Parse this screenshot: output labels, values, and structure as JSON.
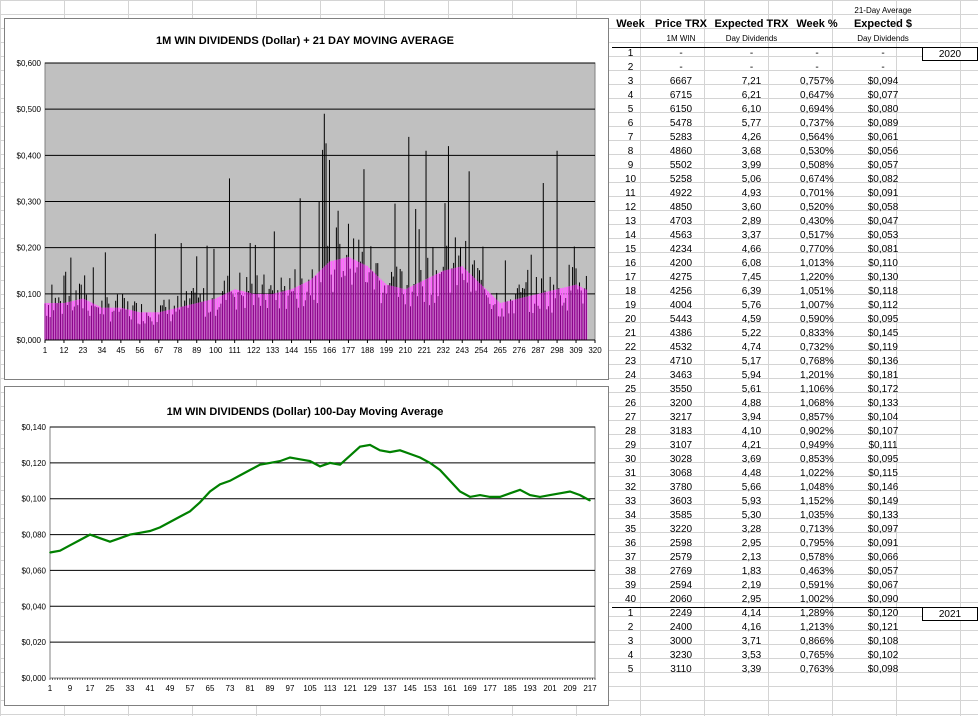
{
  "chart_data": [
    {
      "type": "bar",
      "title": "1M WIN DIVIDENDS (Dollar) + 21 DAY MOVING AVERAGE",
      "ylim": [
        0,
        0.6
      ],
      "yticks": [
        "$0,000",
        "$0,100",
        "$0,200",
        "$0,300",
        "$0,400",
        "$0,500",
        "$0,600"
      ],
      "xticks": [
        "1",
        "12",
        "23",
        "34",
        "45",
        "56",
        "67",
        "78",
        "89",
        "100",
        "111",
        "122",
        "133",
        "144",
        "155",
        "166",
        "177",
        "188",
        "199",
        "210",
        "221",
        "232",
        "243",
        "254",
        "265",
        "276",
        "287",
        "298",
        "309",
        "320"
      ],
      "xlim": [
        1,
        320
      ],
      "grid": true,
      "background": "#c0c0c0",
      "series_colors": {
        "daily": "#000000",
        "average_21": "#ff66ff",
        "overlap": "#800080"
      },
      "series": [
        {
          "values_daily_peaks": [
            [
              5,
              0.12
            ],
            [
              24,
              0.14
            ],
            [
              36,
              0.16
            ],
            [
              65,
              0.23
            ],
            [
              80,
              0.21
            ],
            [
              108,
              0.35
            ],
            [
              120,
              0.21
            ],
            [
              160,
              0.3
            ],
            [
              163,
              0.49
            ],
            [
              166,
              0.39
            ],
            [
              171,
              0.28
            ],
            [
              180,
              0.22
            ],
            [
              186,
              0.37
            ],
            [
              212,
              0.44
            ],
            [
              218,
              0.24
            ],
            [
              222,
              0.41
            ],
            [
              235,
              0.42
            ],
            [
              290,
              0.34
            ],
            [
              298,
              0.41
            ]
          ]
        },
        {
          "values_average": [
            0.08,
            0.08,
            0.09,
            0.07,
            0.07,
            0.06,
            0.06,
            0.07,
            0.08,
            0.09,
            0.11,
            0.1,
            0.1,
            0.11,
            0.13,
            0.17,
            0.18,
            0.16,
            0.12,
            0.11,
            0.13,
            0.15,
            0.16,
            0.12,
            0.08,
            0.09,
            0.1,
            0.11,
            0.12,
            0.1
          ]
        }
      ]
    },
    {
      "type": "line",
      "title": "1M WIN DIVIDENDS (Dollar) 100-Day Moving Average",
      "ylim": [
        0,
        0.14
      ],
      "yticks": [
        "$0,000",
        "$0,020",
        "$0,040",
        "$0,060",
        "$0,080",
        "$0,100",
        "$0,120",
        "$0,140"
      ],
      "xticks": [
        "1",
        "9",
        "17",
        "25",
        "33",
        "41",
        "49",
        "57",
        "65",
        "73",
        "81",
        "89",
        "97",
        "105",
        "113",
        "121",
        "129",
        "137",
        "145",
        "153",
        "161",
        "169",
        "177",
        "185",
        "193",
        "201",
        "209",
        "217"
      ],
      "xlim": [
        1,
        219
      ],
      "grid": true,
      "line_color": "#008000",
      "x": [
        1,
        5,
        9,
        13,
        17,
        21,
        25,
        29,
        33,
        37,
        41,
        45,
        49,
        53,
        57,
        61,
        65,
        69,
        73,
        77,
        81,
        85,
        89,
        93,
        97,
        101,
        105,
        109,
        113,
        117,
        121,
        125,
        129,
        133,
        137,
        141,
        145,
        149,
        153,
        157,
        161,
        165,
        169,
        173,
        177,
        181,
        185,
        189,
        193,
        197,
        201,
        205,
        209,
        213,
        217
      ],
      "y": [
        0.07,
        0.071,
        0.074,
        0.077,
        0.08,
        0.078,
        0.076,
        0.078,
        0.08,
        0.081,
        0.082,
        0.084,
        0.087,
        0.09,
        0.093,
        0.098,
        0.104,
        0.108,
        0.11,
        0.113,
        0.116,
        0.119,
        0.12,
        0.121,
        0.123,
        0.122,
        0.121,
        0.118,
        0.12,
        0.119,
        0.124,
        0.129,
        0.13,
        0.127,
        0.126,
        0.127,
        0.125,
        0.123,
        0.12,
        0.116,
        0.11,
        0.104,
        0.101,
        0.102,
        0.101,
        0.101,
        0.103,
        0.105,
        0.102,
        0.101,
        0.102,
        0.103,
        0.104,
        0.102,
        0.099
      ]
    }
  ],
  "table": {
    "header_top": "21-Day Average",
    "headers": [
      "Week",
      "Price TRX",
      "Expected TRX",
      "Week %",
      "Expected $"
    ],
    "subheaders": [
      "",
      "1M WIN",
      "Day Dividends",
      "",
      "Day Dividends"
    ],
    "rows": [
      [
        "1",
        "-",
        "-",
        "-",
        "-"
      ],
      [
        "2",
        "-",
        "-",
        "-",
        "-"
      ],
      [
        "3",
        "6667",
        "7,21",
        "0,757%",
        "$0,094"
      ],
      [
        "4",
        "6715",
        "6,21",
        "0,647%",
        "$0,077"
      ],
      [
        "5",
        "6150",
        "6,10",
        "0,694%",
        "$0,080"
      ],
      [
        "6",
        "5478",
        "5,77",
        "0,737%",
        "$0,089"
      ],
      [
        "7",
        "5283",
        "4,26",
        "0,564%",
        "$0,061"
      ],
      [
        "8",
        "4860",
        "3,68",
        "0,530%",
        "$0,056"
      ],
      [
        "9",
        "5502",
        "3,99",
        "0,508%",
        "$0,057"
      ],
      [
        "10",
        "5258",
        "5,06",
        "0,674%",
        "$0,082"
      ],
      [
        "11",
        "4922",
        "4,93",
        "0,701%",
        "$0,091"
      ],
      [
        "12",
        "4850",
        "3,60",
        "0,520%",
        "$0,058"
      ],
      [
        "13",
        "4703",
        "2,89",
        "0,430%",
        "$0,047"
      ],
      [
        "14",
        "4563",
        "3,37",
        "0,517%",
        "$0,053"
      ],
      [
        "15",
        "4234",
        "4,66",
        "0,770%",
        "$0,081"
      ],
      [
        "16",
        "4200",
        "6,08",
        "1,013%",
        "$0,110"
      ],
      [
        "17",
        "4275",
        "7,45",
        "1,220%",
        "$0,130"
      ],
      [
        "18",
        "4256",
        "6,39",
        "1,051%",
        "$0,118"
      ],
      [
        "19",
        "4004",
        "5,76",
        "1,007%",
        "$0,112"
      ],
      [
        "20",
        "5443",
        "4,59",
        "0,590%",
        "$0,095"
      ],
      [
        "21",
        "4386",
        "5,22",
        "0,833%",
        "$0,145"
      ],
      [
        "22",
        "4532",
        "4,74",
        "0,732%",
        "$0,119"
      ],
      [
        "23",
        "4710",
        "5,17",
        "0,768%",
        "$0,136"
      ],
      [
        "24",
        "3463",
        "5,94",
        "1,201%",
        "$0,181"
      ],
      [
        "25",
        "3550",
        "5,61",
        "1,106%",
        "$0,172"
      ],
      [
        "26",
        "3200",
        "4,88",
        "1,068%",
        "$0,133"
      ],
      [
        "27",
        "3217",
        "3,94",
        "0,857%",
        "$0,104"
      ],
      [
        "28",
        "3183",
        "4,10",
        "0,902%",
        "$0,107"
      ],
      [
        "29",
        "3107",
        "4,21",
        "0,949%",
        "$0,111"
      ],
      [
        "30",
        "3028",
        "3,69",
        "0,853%",
        "$0,095"
      ],
      [
        "31",
        "3068",
        "4,48",
        "1,022%",
        "$0,115"
      ],
      [
        "32",
        "3780",
        "5,66",
        "1,048%",
        "$0,146"
      ],
      [
        "33",
        "3603",
        "5,93",
        "1,152%",
        "$0,149"
      ],
      [
        "34",
        "3585",
        "5,30",
        "1,035%",
        "$0,133"
      ],
      [
        "35",
        "3220",
        "3,28",
        "0,713%",
        "$0,097"
      ],
      [
        "36",
        "2598",
        "2,95",
        "0,795%",
        "$0,091"
      ],
      [
        "37",
        "2579",
        "2,13",
        "0,578%",
        "$0,066"
      ],
      [
        "38",
        "2769",
        "1,83",
        "0,463%",
        "$0,057"
      ],
      [
        "39",
        "2594",
        "2,19",
        "0,591%",
        "$0,067"
      ],
      [
        "40",
        "2060",
        "2,95",
        "1,002%",
        "$0,090"
      ],
      [
        "1",
        "2249",
        "4,14",
        "1,289%",
        "$0,120"
      ],
      [
        "2",
        "2400",
        "4,16",
        "1,213%",
        "$0,121"
      ],
      [
        "3",
        "3000",
        "3,71",
        "0,866%",
        "$0,108"
      ],
      [
        "4",
        "3230",
        "3,53",
        "0,765%",
        "$0,102"
      ],
      [
        "5",
        "3110",
        "3,39",
        "0,763%",
        "$0,098"
      ]
    ],
    "year_labels": [
      {
        "row": 0,
        "text": "2020"
      },
      {
        "row": 40,
        "text": "2021"
      }
    ]
  }
}
